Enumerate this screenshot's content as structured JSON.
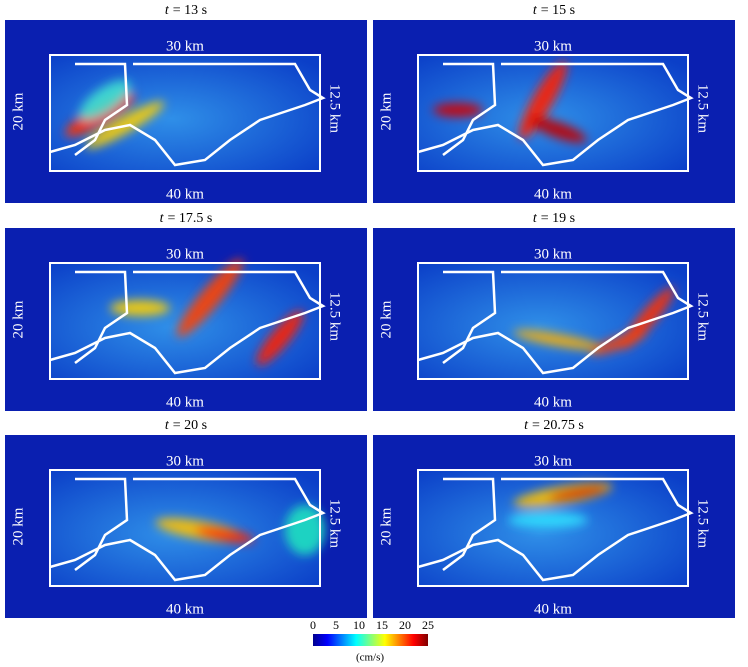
{
  "panels": [
    {
      "title": {
        "var": "t",
        "rest": "= 13 s"
      },
      "top": "30 km",
      "bottom": "40 km",
      "left": "20 km",
      "right": "12.5 km"
    },
    {
      "title": {
        "var": "t",
        "rest": "= 15 s"
      },
      "top": "30 km",
      "bottom": "40 km",
      "left": "20 km",
      "right": "12.5 km"
    },
    {
      "title": {
        "var": "t",
        "rest": "= 17.5 s"
      },
      "top": "30 km",
      "bottom": "40 km",
      "left": "20 km",
      "right": "12.5 km"
    },
    {
      "title": {
        "var": "t",
        "rest": "= 19 s"
      },
      "top": "30 km",
      "bottom": "40 km",
      "left": "20 km",
      "right": "12.5 km"
    },
    {
      "title": {
        "var": "t",
        "rest": "= 20 s"
      },
      "top": "30 km",
      "bottom": "40 km",
      "left": "20 km",
      "right": "12.5 km"
    },
    {
      "title": {
        "var": "t",
        "rest": "= 20.75 s"
      },
      "top": "30 km",
      "bottom": "40 km",
      "left": "20 km",
      "right": "12.5 km"
    }
  ],
  "colorbar": {
    "ticks": [
      0,
      5,
      10,
      15,
      20,
      25
    ],
    "unit": "(cm/s)"
  }
}
